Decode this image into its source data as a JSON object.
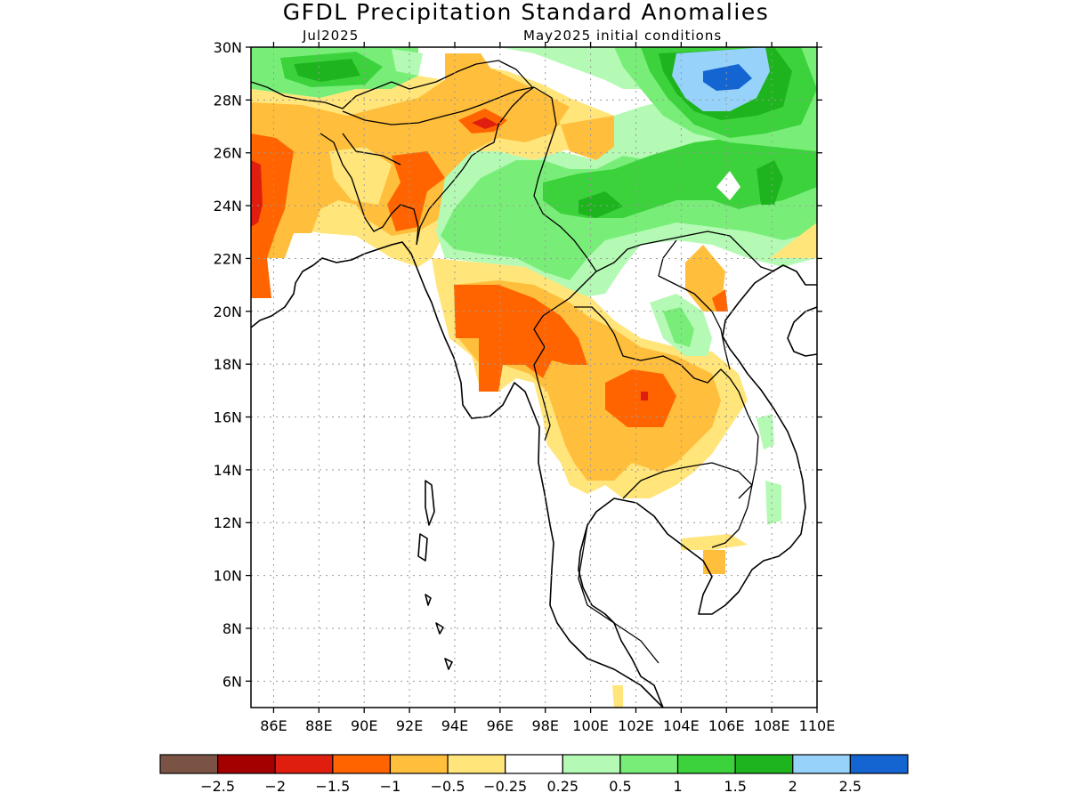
{
  "title": "GFDL Precipitation Standard Anomalies",
  "subtitle_left": "Jul2025",
  "subtitle_right": "May2025 initial conditions",
  "map": {
    "lon_range": [
      85,
      110
    ],
    "lat_range": [
      5,
      30
    ],
    "lat_ticks": [
      {
        "value": 6,
        "label": "6N"
      },
      {
        "value": 8,
        "label": "8N"
      },
      {
        "value": 10,
        "label": "10N"
      },
      {
        "value": 12,
        "label": "12N"
      },
      {
        "value": 14,
        "label": "14N"
      },
      {
        "value": 16,
        "label": "16N"
      },
      {
        "value": 18,
        "label": "18N"
      },
      {
        "value": 20,
        "label": "20N"
      },
      {
        "value": 22,
        "label": "22N"
      },
      {
        "value": 24,
        "label": "24N"
      },
      {
        "value": 26,
        "label": "26N"
      },
      {
        "value": 28,
        "label": "28N"
      },
      {
        "value": 30,
        "label": "30N"
      }
    ],
    "lon_ticks": [
      {
        "value": 86,
        "label": "86E"
      },
      {
        "value": 88,
        "label": "88E"
      },
      {
        "value": 90,
        "label": "90E"
      },
      {
        "value": 92,
        "label": "92E"
      },
      {
        "value": 94,
        "label": "94E"
      },
      {
        "value": 96,
        "label": "96E"
      },
      {
        "value": 98,
        "label": "98E"
      },
      {
        "value": 100,
        "label": "100E"
      },
      {
        "value": 102,
        "label": "102E"
      },
      {
        "value": 104,
        "label": "104E"
      },
      {
        "value": 106,
        "label": "106E"
      },
      {
        "value": 108,
        "label": "108E"
      },
      {
        "value": 110,
        "label": "110E"
      }
    ]
  },
  "colorbar": {
    "colors": [
      "#7b5345",
      "#a50000",
      "#e01e10",
      "#ff6400",
      "#ffbe3c",
      "#ffe57a",
      "#ffffff",
      "#b4fab4",
      "#78ee78",
      "#3cd23c",
      "#1eb41e",
      "#96d2fa",
      "#1464d2"
    ],
    "labels": [
      "−2.5",
      "−2",
      "−1.5",
      "−1",
      "−0.5",
      "−0.25",
      "0.25",
      "0.5",
      "1",
      "1.5",
      "2",
      "2.5"
    ]
  }
}
